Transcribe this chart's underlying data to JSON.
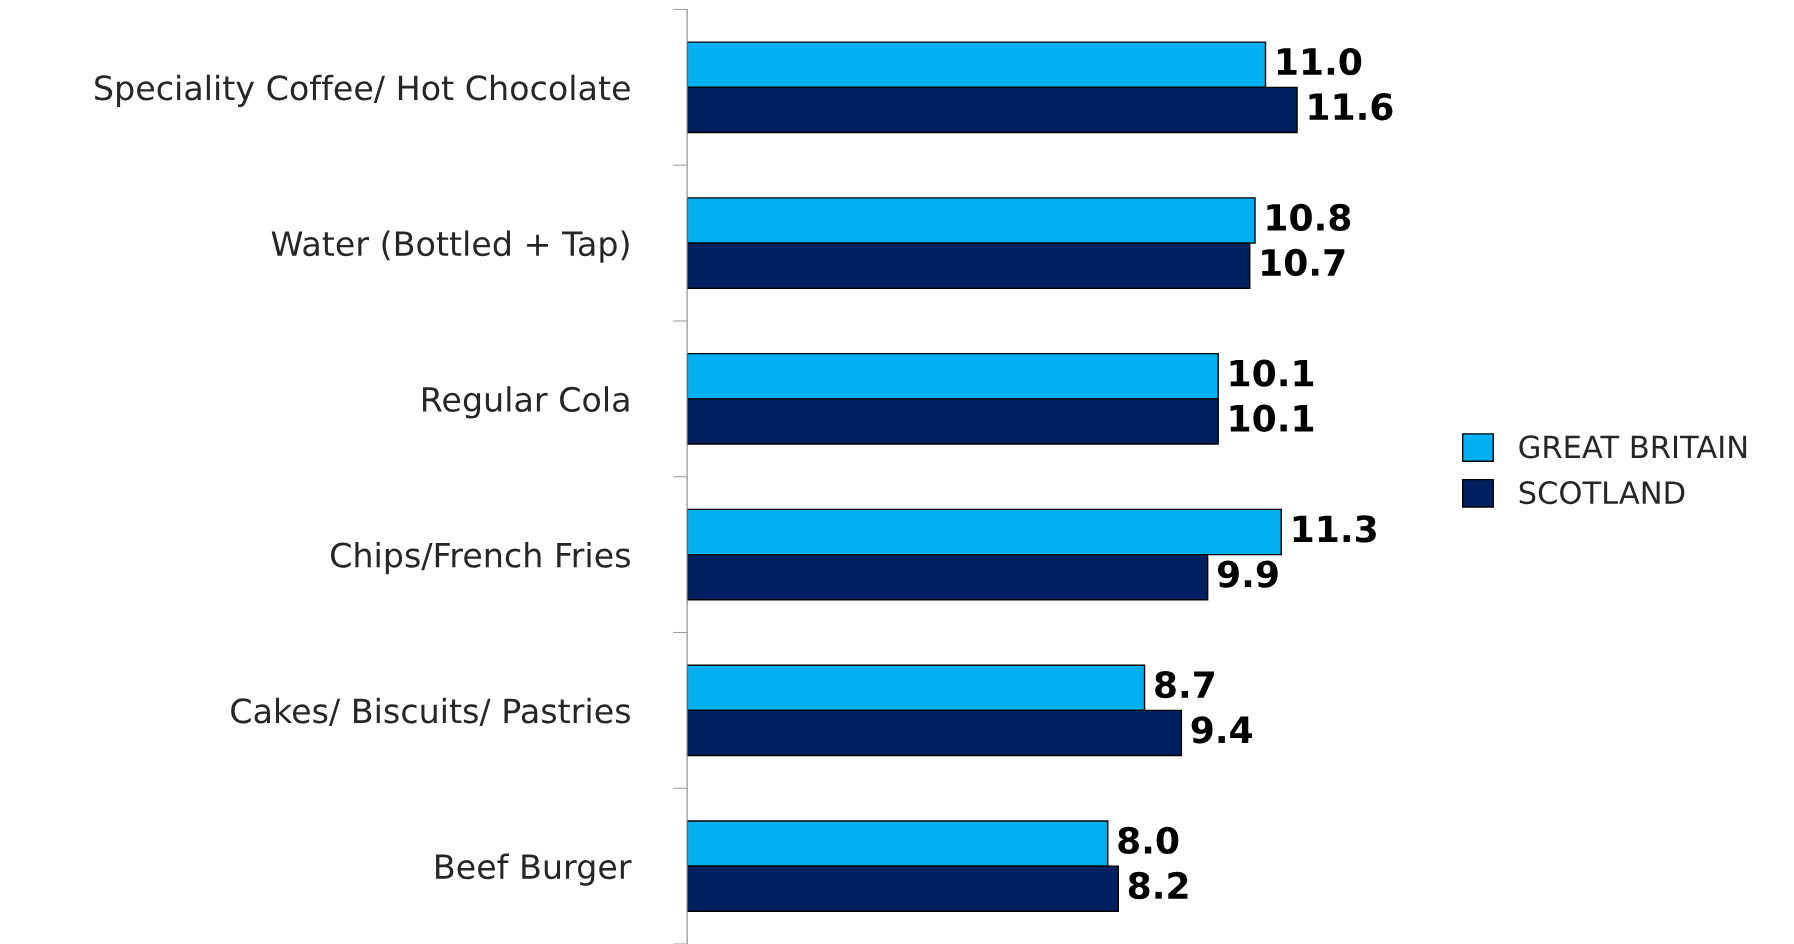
{
  "chart_data": {
    "type": "bar",
    "orientation": "horizontal",
    "categories": [
      "Speciality Coffee/ Hot Chocolate",
      "Water (Bottled + Tap)",
      "Regular Cola",
      "Chips/French Fries",
      "Cakes/ Biscuits/ Pastries",
      "Beef Burger"
    ],
    "series": [
      {
        "name": "GREAT BRITAIN",
        "color": "#00b0f0",
        "values": [
          11.0,
          10.8,
          10.1,
          11.3,
          8.7,
          8.0
        ],
        "value_labels": [
          "11.0",
          "10.8",
          "10.1",
          "11.3",
          "8.7",
          "8.0"
        ]
      },
      {
        "name": "SCOTLAND",
        "color": "#002060",
        "values": [
          11.6,
          10.7,
          10.1,
          9.9,
          9.4,
          8.2
        ],
        "value_labels": [
          "11.6",
          "10.7",
          "10.1",
          "9.9",
          "9.4",
          "8.2"
        ]
      }
    ],
    "legend": "right"
  }
}
